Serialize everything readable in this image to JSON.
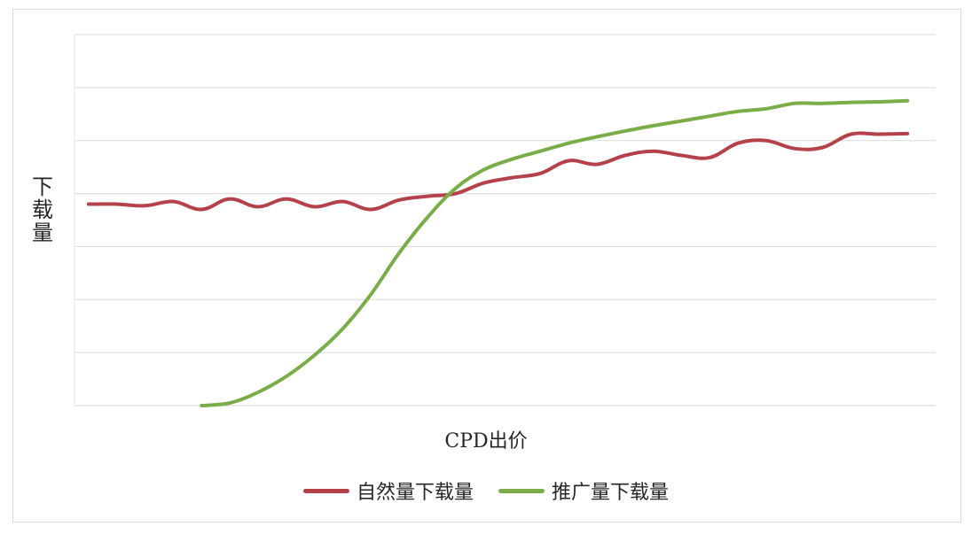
{
  "chart_data": {
    "type": "line",
    "title": "",
    "xlabel": "CPD出价",
    "ylabel": "下载量",
    "grid": true,
    "legend_position": "bottom",
    "x": [
      1,
      2,
      3,
      4,
      5,
      6,
      7,
      8,
      9,
      10,
      11,
      12,
      13,
      14,
      15,
      16,
      17,
      18,
      19,
      20,
      21,
      22,
      23,
      24,
      25,
      26,
      27,
      28,
      29,
      30
    ],
    "xlim": [
      0.5,
      31
    ],
    "ylim": [
      0,
      7
    ],
    "series": [
      {
        "name": "自然量下载量",
        "color": "#b5414b",
        "values": [
          3.8,
          3.8,
          3.77,
          3.85,
          3.7,
          3.9,
          3.75,
          3.9,
          3.75,
          3.85,
          3.7,
          3.88,
          3.95,
          4.0,
          4.2,
          4.3,
          4.38,
          4.62,
          4.55,
          4.72,
          4.8,
          4.72,
          4.68,
          4.95,
          5.0,
          4.85,
          4.87,
          5.12,
          5.12,
          5.13
        ]
      },
      {
        "name": "推广量下载量",
        "color": "#7aad47",
        "values": [
          null,
          null,
          null,
          null,
          0.0,
          0.05,
          0.25,
          0.55,
          0.95,
          1.45,
          2.1,
          2.88,
          3.55,
          4.1,
          4.45,
          4.65,
          4.8,
          4.95,
          5.07,
          5.18,
          5.28,
          5.37,
          5.46,
          5.55,
          5.6,
          5.7,
          5.7,
          5.72,
          5.73,
          5.75
        ]
      }
    ]
  }
}
